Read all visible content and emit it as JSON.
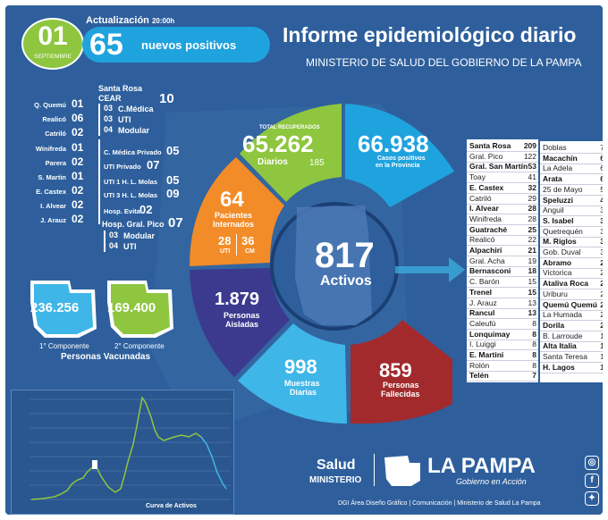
{
  "header": {
    "actualizacion": "Actualización",
    "hora": "20:00h",
    "dia": "01",
    "mes": "SEPTIEMBRE",
    "nuevos_num": "65",
    "nuevos_label": "nuevos positivos",
    "title": "Informe epidemiológico diario",
    "subtitle": "MINISTERIO DE SALUD DEL GOBIERNO DE LA PAMPA"
  },
  "left_list": [
    {
      "name": "Q. Quemú",
      "value": "01"
    },
    {
      "name": "Realicó",
      "value": "06"
    },
    {
      "name": "Catriló",
      "value": "02"
    },
    {
      "name": "Winifreda",
      "value": "01"
    },
    {
      "name": "Parera",
      "value": "02"
    },
    {
      "name": "S. Martin",
      "value": "01"
    },
    {
      "name": "E. Castex",
      "value": "02"
    },
    {
      "name": "I. Alvear",
      "value": "02"
    },
    {
      "name": "J. Arauz",
      "value": "02"
    }
  ],
  "santa_rosa": {
    "title": "Santa Rosa",
    "cear_label": "CEAR",
    "cear_value": "10",
    "items": [
      {
        "value": "03",
        "label": "C.Médica"
      },
      {
        "value": "03",
        "label": "UTI"
      },
      {
        "value": "04",
        "label": "Modular"
      }
    ],
    "rows": [
      {
        "label": "C. Médica Privado",
        "value": "05"
      },
      {
        "label": "UTI Privado",
        "value": "07"
      },
      {
        "label": "UTI 1 H. L. Molas",
        "value": "05"
      },
      {
        "label": "UTI 3 H. L. Molas",
        "value": "09"
      },
      {
        "label": "Hosp. Evita",
        "value": "02"
      }
    ]
  },
  "gral_pico": {
    "title": "Hosp. Gral. Pico",
    "value": "07",
    "items": [
      {
        "value": "03",
        "label": "Modular"
      },
      {
        "value": "04",
        "label": "UTI"
      }
    ]
  },
  "center": {
    "recuperados_label": "TOTAL RECUPERADOS",
    "recuperados": "65.262",
    "diarios_label": "Diarios",
    "diarios": "185",
    "casos": "66.938",
    "casos_label1": "Casos positivos",
    "casos_label2": "en la Provincia",
    "internados": "64",
    "internados_label1": "Pacientes",
    "internados_label2": "Internados",
    "uti": "28",
    "uti_label": "UTI",
    "cm": "36",
    "cm_label": "CM",
    "activos": "817",
    "activos_label": "Activos",
    "aisladas": "1.879",
    "aisladas_label1": "Personas",
    "aisladas_label2": "Aisladas",
    "muestras": "998",
    "muestras_label1": "Muestras",
    "muestras_label2": "Diarias",
    "fallecidas": "859",
    "fallecidas_label1": "Personas",
    "fallecidas_label2": "Fallecidas"
  },
  "vacunas": {
    "comp1": "236.256",
    "comp1_label": "1° Componente",
    "comp2": "169.400",
    "comp2_label": "2° Componente",
    "label": "Personas Vacunadas"
  },
  "table_left": [
    {
      "name": "Santa Rosa",
      "value": "209",
      "bold": true
    },
    {
      "name": "Gral. Pico",
      "value": "122",
      "bold": false
    },
    {
      "name": "Gral. San Martín",
      "value": "53",
      "bold": true
    },
    {
      "name": "Toay",
      "value": "41",
      "bold": false
    },
    {
      "name": "E. Castex",
      "value": "32",
      "bold": true
    },
    {
      "name": "Catriló",
      "value": "29",
      "bold": false
    },
    {
      "name": "I. Alvear",
      "value": "28",
      "bold": true
    },
    {
      "name": "Winifreda",
      "value": "28",
      "bold": false
    },
    {
      "name": "Guatraché",
      "value": "25",
      "bold": true
    },
    {
      "name": "Realicó",
      "value": "22",
      "bold": false
    },
    {
      "name": "Alpachiri",
      "value": "21",
      "bold": true
    },
    {
      "name": "Gral. Acha",
      "value": "19",
      "bold": false
    },
    {
      "name": "Bernasconi",
      "value": "18",
      "bold": true
    },
    {
      "name": "C. Barón",
      "value": "15",
      "bold": false
    },
    {
      "name": "Trenel",
      "value": "15",
      "bold": true
    },
    {
      "name": "J. Arauz",
      "value": "13",
      "bold": false
    },
    {
      "name": "Rancul",
      "value": "13",
      "bold": true
    },
    {
      "name": "Caleufú",
      "value": "8",
      "bold": false
    },
    {
      "name": "Lonquimay",
      "value": "8",
      "bold": true
    },
    {
      "name": "I. Luiggi",
      "value": "8",
      "bold": false
    },
    {
      "name": "E. Martini",
      "value": "8",
      "bold": true
    },
    {
      "name": "Rolón",
      "value": "8",
      "bold": false
    },
    {
      "name": "Telén",
      "value": "7",
      "bold": true
    }
  ],
  "table_right": [
    {
      "name": "Doblas",
      "value": "7",
      "bold": false
    },
    {
      "name": "Macachín",
      "value": "6",
      "bold": true
    },
    {
      "name": "La Adela",
      "value": "6",
      "bold": false
    },
    {
      "name": "Arata",
      "value": "6",
      "bold": true
    },
    {
      "name": "25 de Mayo",
      "value": "5",
      "bold": false
    },
    {
      "name": "Speluzzi",
      "value": "4",
      "bold": true
    },
    {
      "name": "Anguil",
      "value": "3",
      "bold": false
    },
    {
      "name": "S. Isabel",
      "value": "3",
      "bold": true
    },
    {
      "name": "Quetrequén",
      "value": "3",
      "bold": false
    },
    {
      "name": "M. Riglos",
      "value": "3",
      "bold": true
    },
    {
      "name": "Gob. Duval",
      "value": "3",
      "bold": false
    },
    {
      "name": "Abramo",
      "value": "2",
      "bold": true
    },
    {
      "name": "Victorica",
      "value": "2",
      "bold": false
    },
    {
      "name": "Ataliva Roca",
      "value": "2",
      "bold": true
    },
    {
      "name": "Uriburu",
      "value": "2",
      "bold": false
    },
    {
      "name": "Quemú Quemú",
      "value": "2",
      "bold": true
    },
    {
      "name": "La Humada",
      "value": "2",
      "bold": false
    },
    {
      "name": "Dorila",
      "value": "2",
      "bold": true
    },
    {
      "name": "B. Larroude",
      "value": "1",
      "bold": false
    },
    {
      "name": "Alta Italia",
      "value": "1",
      "bold": true
    },
    {
      "name": "Santa Teresa",
      "value": "1",
      "bold": false
    },
    {
      "name": "H. Lagos",
      "value": "1",
      "bold": true
    }
  ],
  "curve": {
    "label": "Curva de Activos"
  },
  "footer": {
    "salud": "Salud",
    "ministerio": "MINISTERIO",
    "brand": "LA PAMPA",
    "tagline": "Gobierno en Acción",
    "credits": "DGI Área Diseño Gráfico  |  Comunicación  |  Ministerio de Salud La Pampa"
  },
  "colors": {
    "bg": "#2e5f9c",
    "green": "#8ec63f",
    "cyan": "#1fa3de",
    "orange": "#f28c28",
    "purple": "#3b3a8f",
    "lightblue": "#3fb6e8",
    "red": "#a22a2d"
  }
}
